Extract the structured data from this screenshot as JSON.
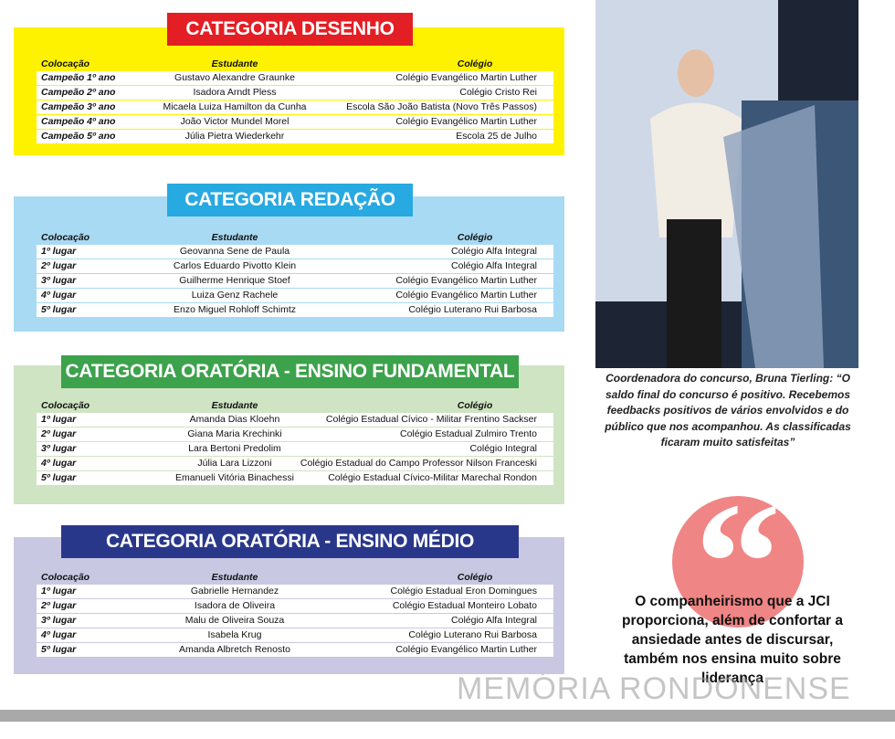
{
  "sections": [
    {
      "title": "CATEGORIA DESENHO",
      "header": [
        "Colocação",
        "Estudante",
        "Colégio"
      ],
      "rows": [
        [
          "Campeão 1º ano",
          "Gustavo Alexandre Graunke",
          "Colégio Evangélico Martin Luther"
        ],
        [
          "Campeão 2º ano",
          "Isadora Arndt Pless",
          "Colégio Cristo Rei"
        ],
        [
          "Campeão 3º ano",
          "Micaela Luiza Hamilton da Cunha",
          "Escola São João Batista (Novo Três Passos)"
        ],
        [
          "Campeão 4º ano",
          "João Victor Mundel Morel",
          "Colégio Evangélico Martin Luther"
        ],
        [
          "Campeão 5º ano",
          "Júlia Pietra Wiederkehr",
          "Escola 25 de Julho"
        ]
      ]
    },
    {
      "title": "CATEGORIA REDAÇÃO",
      "header": [
        "Colocação",
        "Estudante",
        "Colégio"
      ],
      "rows": [
        [
          "1º lugar",
          "Geovanna Sene de Paula",
          "Colégio Alfa Integral"
        ],
        [
          "2º lugar",
          "Carlos Eduardo Pivotto Klein",
          "Colégio Alfa Integral"
        ],
        [
          "3º lugar",
          "Guilherme Henrique Stoef",
          "Colégio Evangélico Martin Luther"
        ],
        [
          "4º lugar",
          "Luiza Genz Rachele",
          "Colégio Evangélico Martin Luther"
        ],
        [
          "5º lugar",
          "Enzo Miguel Rohloff Schimtz",
          "Colégio Luterano Rui Barbosa"
        ]
      ]
    },
    {
      "title": "CATEGORIA ORATÓRIA - ENSINO FUNDAMENTAL",
      "header": [
        "Colocação",
        "Estudante",
        "Colégio"
      ],
      "rows": [
        [
          "1º lugar",
          "Amanda Dias Kloehn",
          "Colégio Estadual Cívico - Militar Frentino Sackser"
        ],
        [
          "2º lugar",
          "Giana Maria Krechinki",
          "Colégio Estadual Zulmiro Trento"
        ],
        [
          "3º lugar",
          "Lara Bertoni Predolim",
          "Colégio Integral"
        ],
        [
          "4º lugar",
          "Júlia Lara Lizzoni",
          "Colégio Estadual do Campo Professor Nilson Franceski"
        ],
        [
          "5º lugar",
          "Emanueli Vitória Binachessi",
          "Colégio Estadual Cívico-Militar Marechal Rondon"
        ]
      ]
    },
    {
      "title": "CATEGORIA ORATÓRIA - ENSINO MÉDIO",
      "header": [
        "Colocação",
        "Estudante",
        "Colégio"
      ],
      "rows": [
        [
          "1º lugar",
          "Gabrielle Hernandez",
          "Colégio Estadual Eron Domingues"
        ],
        [
          "2º lugar",
          "Isadora de Oliveira",
          "Colégio Estadual Monteiro Lobato"
        ],
        [
          "3º lugar",
          "Malu de Oliveira Souza",
          "Colégio Alfa Integral"
        ],
        [
          "4º lugar",
          "Isabela Krug",
          "Colégio Luterano Rui Barbosa"
        ],
        [
          "5º lugar",
          "Amanda Albretch Renosto",
          "Colégio Evangélico Martin Luther"
        ]
      ]
    }
  ],
  "caption": "Coordenadora do concurso, Bruna Tierling: “O saldo final do concurso é positivo. Recebemos feedbacks positivos de vários envolvidos e do público que nos acompanhou. As classificadas ficaram muito satisfeitas”",
  "quote": "O companheirismo que a JCI proporciona, além de confortar a ansiedade antes de discursar, também nos ensina muito sobre liderança",
  "watermark": "MEMÓRIA RONDONENSE"
}
